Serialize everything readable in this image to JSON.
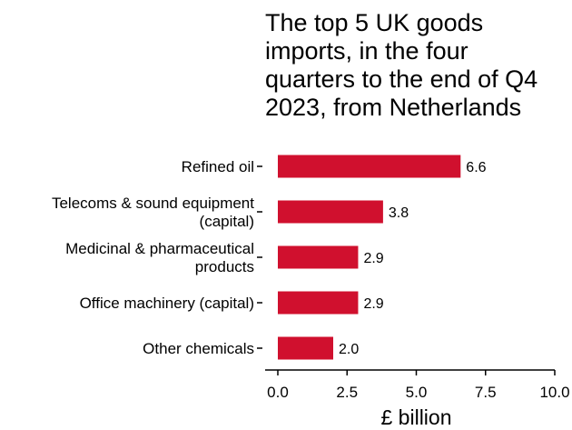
{
  "chart_data": {
    "type": "bar",
    "orientation": "horizontal",
    "title_lines": [
      "The top 5 UK goods",
      "imports, in the four",
      "quarters to the end of Q4",
      "2023, from Netherlands"
    ],
    "categories": [
      [
        "Refined oil"
      ],
      [
        "Telecoms & sound equipment",
        "(capital)"
      ],
      [
        "Medicinal & pharmaceutical",
        "products"
      ],
      [
        "Office machinery (capital)"
      ],
      [
        "Other chemicals"
      ]
    ],
    "values": [
      6.6,
      3.8,
      2.9,
      2.9,
      2.0
    ],
    "value_labels": [
      "6.6",
      "3.8",
      "2.9",
      "2.9",
      "2.0"
    ],
    "xlabel": "£ billion",
    "xlim": [
      0,
      10
    ],
    "xticks": [
      0,
      2.5,
      5,
      7.5,
      10
    ],
    "xtick_labels": [
      "0.0",
      "2.5",
      "5.0",
      "7.5",
      "10.0"
    ],
    "bar_color": "#d0102e",
    "grid": false,
    "legend": "none"
  }
}
